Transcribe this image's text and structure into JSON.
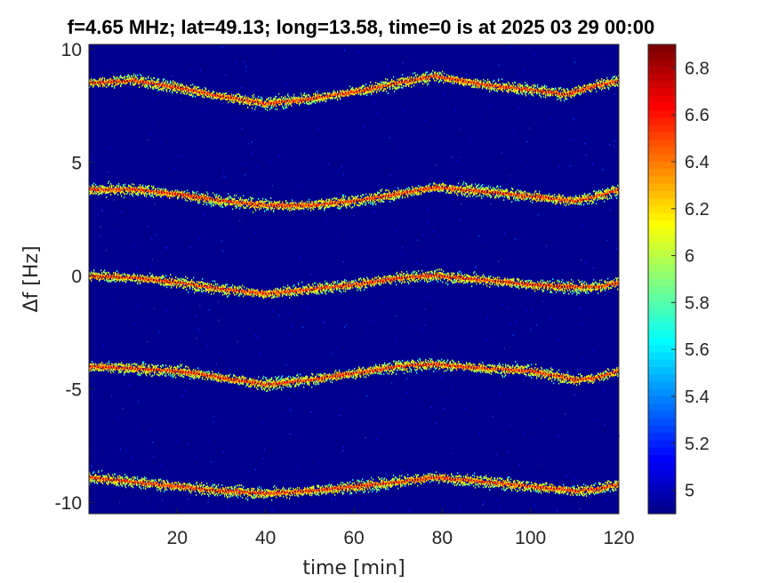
{
  "chart_data": {
    "type": "heatmap",
    "title": "f=4.65 MHz;  lat=49.13; long=13.58, time=0 is at 2025 03 29 00:00",
    "xlabel": "time [min]",
    "ylabel": "Δf [Hz]",
    "xlim": [
      0,
      120
    ],
    "ylim": [
      -10.5,
      10.2
    ],
    "xticks": [
      20,
      40,
      60,
      80,
      100,
      120
    ],
    "xtick_labels": [
      "20",
      "40",
      "60",
      "80",
      "100",
      "120"
    ],
    "yticks": [
      10,
      5,
      0,
      -5,
      -10
    ],
    "ytick_labels": [
      "10",
      "5",
      "0",
      "-5",
      "-10"
    ],
    "colorbar": {
      "colormap": "jet",
      "clim": [
        4.9,
        6.9
      ],
      "ticks": [
        6.8,
        6.6,
        6.4,
        6.2,
        6.0,
        5.8,
        5.6,
        5.4,
        5.2,
        5.0
      ],
      "tick_labels": [
        "6.8",
        "6.6",
        "6.4",
        "6.2",
        "6",
        "5.8",
        "5.6",
        "5.4",
        "5.2",
        "5"
      ]
    },
    "background_color": "#00008f",
    "series": [
      {
        "traces": [
          [
            0,
            8.5
          ],
          [
            10,
            8.6
          ],
          [
            20,
            8.3
          ],
          [
            30,
            7.9
          ],
          [
            40,
            7.6
          ],
          [
            50,
            7.8
          ],
          [
            60,
            8.1
          ],
          [
            70,
            8.5
          ],
          [
            78,
            8.8
          ],
          [
            90,
            8.4
          ],
          [
            100,
            8.2
          ],
          [
            108,
            8.0
          ],
          [
            115,
            8.4
          ],
          [
            120,
            8.6
          ]
        ]
      },
      {
        "traces": [
          [
            0,
            3.8
          ],
          [
            10,
            3.8
          ],
          [
            20,
            3.6
          ],
          [
            30,
            3.3
          ],
          [
            40,
            3.1
          ],
          [
            50,
            3.1
          ],
          [
            60,
            3.3
          ],
          [
            70,
            3.6
          ],
          [
            78,
            3.9
          ],
          [
            90,
            3.7
          ],
          [
            100,
            3.5
          ],
          [
            110,
            3.3
          ],
          [
            115,
            3.5
          ],
          [
            120,
            3.8
          ]
        ]
      },
      {
        "traces": [
          [
            0,
            0.0
          ],
          [
            10,
            -0.1
          ],
          [
            20,
            -0.3
          ],
          [
            30,
            -0.6
          ],
          [
            40,
            -0.8
          ],
          [
            50,
            -0.6
          ],
          [
            60,
            -0.4
          ],
          [
            70,
            -0.1
          ],
          [
            78,
            0.0
          ],
          [
            90,
            -0.2
          ],
          [
            100,
            -0.4
          ],
          [
            110,
            -0.5
          ],
          [
            115,
            -0.5
          ],
          [
            120,
            -0.3
          ]
        ]
      },
      {
        "traces": [
          [
            0,
            -4.0
          ],
          [
            10,
            -4.1
          ],
          [
            20,
            -4.2
          ],
          [
            30,
            -4.5
          ],
          [
            40,
            -4.8
          ],
          [
            50,
            -4.6
          ],
          [
            60,
            -4.3
          ],
          [
            70,
            -4.0
          ],
          [
            78,
            -3.9
          ],
          [
            90,
            -4.1
          ],
          [
            100,
            -4.2
          ],
          [
            110,
            -4.6
          ],
          [
            115,
            -4.5
          ],
          [
            120,
            -4.2
          ]
        ]
      },
      {
        "traces": [
          [
            0,
            -8.9
          ],
          [
            10,
            -9.1
          ],
          [
            20,
            -9.3
          ],
          [
            30,
            -9.5
          ],
          [
            40,
            -9.6
          ],
          [
            50,
            -9.5
          ],
          [
            60,
            -9.3
          ],
          [
            70,
            -9.1
          ],
          [
            78,
            -8.9
          ],
          [
            90,
            -9.1
          ],
          [
            100,
            -9.3
          ],
          [
            110,
            -9.5
          ],
          [
            115,
            -9.4
          ],
          [
            120,
            -9.2
          ]
        ]
      }
    ]
  }
}
